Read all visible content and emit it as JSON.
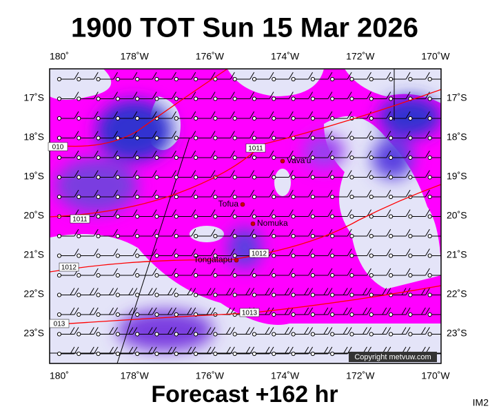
{
  "header": {
    "title": "1900 TOT Sun 15 Mar 2026"
  },
  "footer": {
    "forecast": "Forecast +162 hr",
    "corner": "IM2"
  },
  "map": {
    "copyright": "Copyright metvuw.com",
    "lon_labels": [
      "180˚",
      "178˚W",
      "176˚W",
      "174˚W",
      "172˚W",
      "170˚W"
    ],
    "lat_labels": [
      "17˚S",
      "18˚S",
      "19˚S",
      "20˚S",
      "21˚S",
      "22˚S",
      "23˚S"
    ],
    "places": [
      "Vava'u",
      "Tofua",
      "Nomuka",
      "Tongatapu"
    ],
    "isobar_labels": [
      "010",
      "1011",
      "1011",
      "1012",
      "1012",
      "1013",
      "013"
    ]
  }
}
